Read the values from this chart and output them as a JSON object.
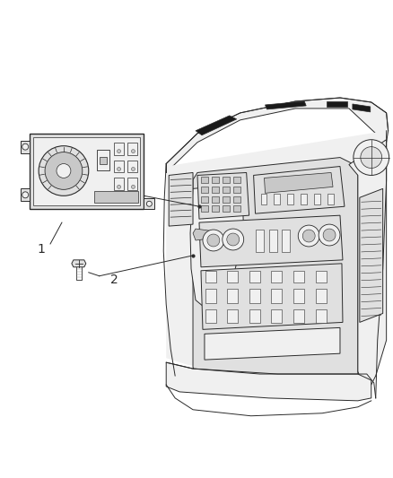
{
  "title": "",
  "background_color": "#ffffff",
  "fig_width": 4.38,
  "fig_height": 5.33,
  "dpi": 100,
  "label_1": "1",
  "label_2": "2",
  "line_color": "#2a2a2a",
  "fill_light": "#f0f0f0",
  "fill_mid": "#e0e0e0",
  "fill_dark": "#c8c8c8",
  "fill_black": "#1a1a1a"
}
